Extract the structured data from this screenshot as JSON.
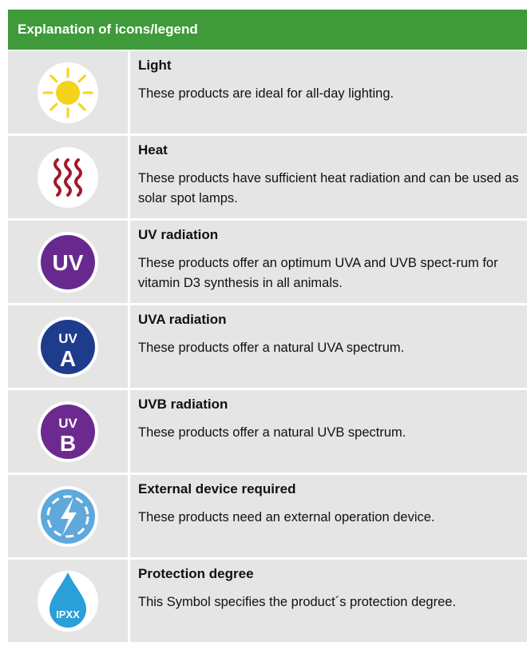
{
  "header": {
    "title": "Explanation of icons/legend"
  },
  "rows": [
    {
      "title": "Light",
      "description": "These products are ideal for all-day lighting."
    },
    {
      "title": "Heat",
      "description": "These products have sufficient heat radiation and can be used as solar spot lamps."
    },
    {
      "title": "UV radiation",
      "description": "These products offer an optimum UVA and UVB spect-rum for vitamin D3 synthesis in all animals.",
      "icon_text": [
        "UV"
      ]
    },
    {
      "title": "UVA radiation",
      "description": "These products offer a natural UVA spectrum.",
      "icon_text": [
        "UV",
        "A"
      ]
    },
    {
      "title": "UVB radiation",
      "description": "These products offer a natural UVB spectrum.",
      "icon_text": [
        "UV",
        "B"
      ]
    },
    {
      "title": "External device required",
      "description": "These products need an external operation device."
    },
    {
      "title": "Protection degree",
      "description": "This Symbol specifies the product´s protection degree.",
      "icon_text": [
        "IPXX"
      ]
    }
  ]
}
